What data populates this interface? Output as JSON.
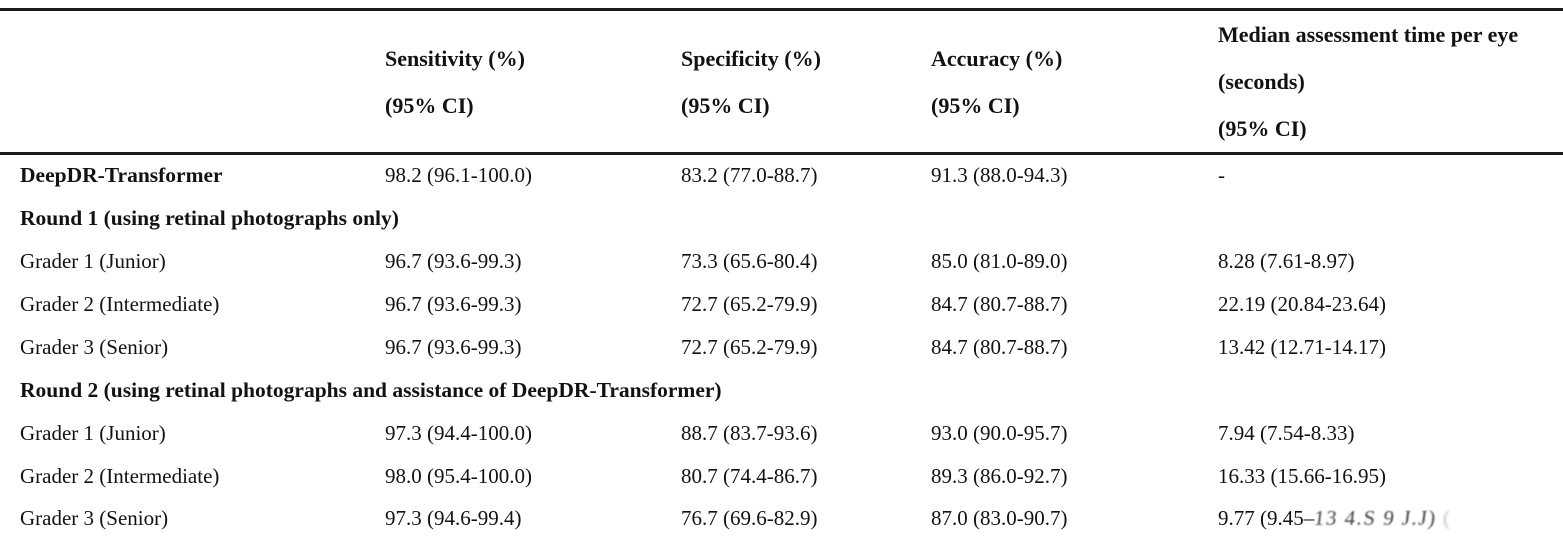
{
  "page": {
    "background": "#ffffff",
    "text_color": "#121212",
    "rule_color": "#1b1b1b"
  },
  "table": {
    "headers": [
      {
        "title": "",
        "ci": ""
      },
      {
        "title": "Sensitivity (%)",
        "ci": "(95% CI)"
      },
      {
        "title": "Specificity (%)",
        "ci": "(95% CI)"
      },
      {
        "title": "Accuracy (%)",
        "ci": "(95% CI)"
      },
      {
        "title": "Median assessment time per eye (seconds)",
        "ci": "(95% CI)"
      }
    ],
    "rows": [
      {
        "kind": "data",
        "label": "DeepDR-Transformer",
        "sensitivity": "98.2 (96.1-100.0)",
        "specificity": "83.2 (77.0-88.7)",
        "accuracy": "91.3 (88.0-94.3)",
        "time": "-"
      },
      {
        "kind": "section",
        "label": "Round 1 (using retinal photographs only)"
      },
      {
        "kind": "data",
        "label": "Grader 1 (Junior)",
        "sensitivity": "96.7 (93.6-99.3)",
        "specificity": "73.3 (65.6-80.4)",
        "accuracy": "85.0 (81.0-89.0)",
        "time": "8.28 (7.61-8.97)"
      },
      {
        "kind": "data",
        "label": "Grader 2 (Intermediate)",
        "sensitivity": "96.7 (93.6-99.3)",
        "specificity": "72.7 (65.2-79.9)",
        "accuracy": "84.7 (80.7-88.7)",
        "time": "22.19 (20.84-23.64)"
      },
      {
        "kind": "data",
        "label": "Grader 3 (Senior)",
        "sensitivity": "96.7 (93.6-99.3)",
        "specificity": "72.7 (65.2-79.9)",
        "accuracy": "84.7 (80.7-88.7)",
        "time": "13.42 (12.71-14.17)"
      },
      {
        "kind": "section",
        "label": "Round 2 (using retinal photographs and assistance of DeepDR-Transformer)"
      },
      {
        "kind": "data",
        "label": "Grader 1 (Junior)",
        "sensitivity": "97.3 (94.4-100.0)",
        "specificity": "88.7 (83.7-93.6)",
        "accuracy": "93.0 (90.0-95.7)",
        "time": "7.94 (7.54-8.33)"
      },
      {
        "kind": "data",
        "label": "Grader 2 (Intermediate)",
        "sensitivity": "98.0 (95.4-100.0)",
        "specificity": "80.7 (74.4-86.7)",
        "accuracy": "89.3 (86.0-92.7)",
        "time": "16.33 (15.66-16.95)"
      },
      {
        "kind": "data",
        "label": "Grader 3 (Senior)",
        "sensitivity": "97.3 (94.6-99.4)",
        "specificity": "76.7 (69.6-82.9)",
        "accuracy": "87.0 (83.0-90.7)",
        "time_prefix": "9.77 (9.45–",
        "time_smudge": "13 4.S 9 J.J)",
        "time_artifact": "("
      }
    ]
  }
}
